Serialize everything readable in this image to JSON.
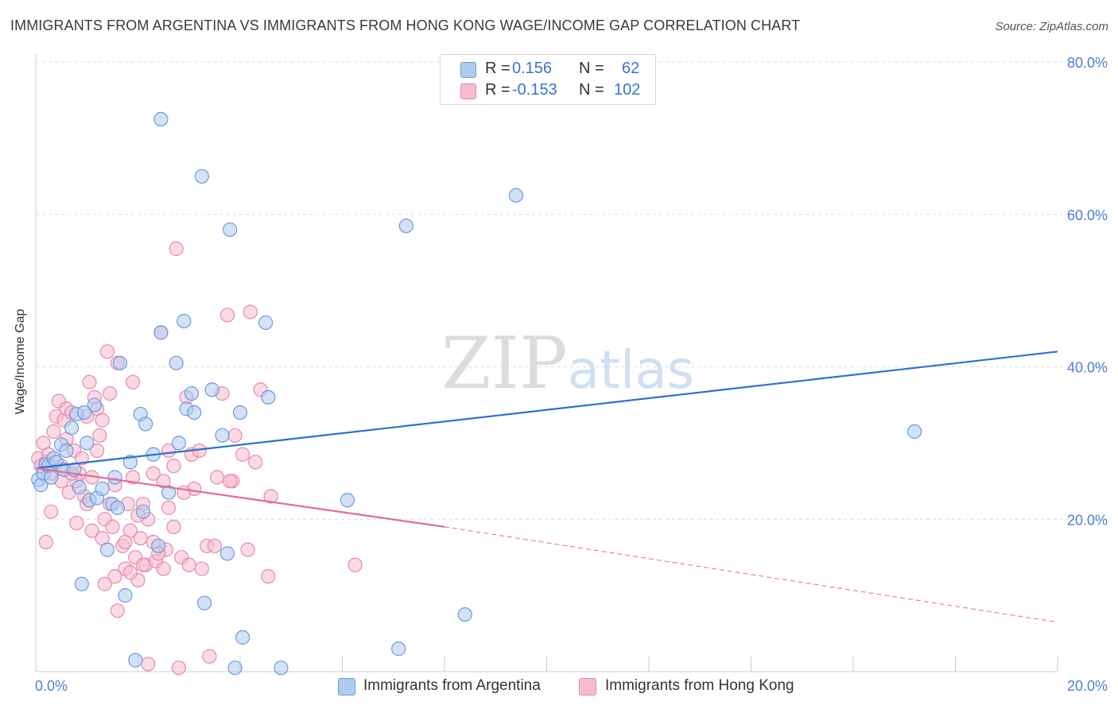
{
  "title": "IMMIGRANTS FROM ARGENTINA VS IMMIGRANTS FROM HONG KONG WAGE/INCOME GAP CORRELATION CHART",
  "source": "Source: ZipAtlas.com",
  "watermark": {
    "zip": "ZIP",
    "atlas": "atlas"
  },
  "stats": {
    "rows": [
      {
        "r_label": "R =",
        "r_value": "0.156",
        "n_label": "N =",
        "n_value": "62"
      },
      {
        "r_label": "R =",
        "r_value": "-0.153",
        "n_label": "N =",
        "n_value": "102"
      }
    ]
  },
  "legend": {
    "items": [
      {
        "label": "Immigrants from Argentina"
      },
      {
        "label": "Immigrants from Hong Kong"
      }
    ]
  },
  "colors": {
    "blue_fill": "#aecbf0",
    "blue_stroke": "#6a9be0",
    "blue_line": "#2f6fd1",
    "pink_fill": "#f7bccf",
    "pink_stroke": "#e68aa8",
    "pink_line": "#e06d96",
    "grid": "#dddddd",
    "tick_text": "#4a7fd4"
  },
  "chart_data": {
    "type": "scatter",
    "title": "IMMIGRANTS FROM ARGENTINA VS IMMIGRANTS FROM HONG KONG WAGE/INCOME GAP CORRELATION CHART",
    "xlabel": "",
    "ylabel": "Wage/Income Gap",
    "xlim": [
      0,
      20
    ],
    "ylim": [
      0,
      80
    ],
    "x_ticks": [
      "0.0%",
      "20.0%"
    ],
    "y_ticks": [
      "20.0%",
      "40.0%",
      "60.0%",
      "80.0%"
    ],
    "grid": true,
    "legend_position": "bottom-center",
    "series": [
      {
        "name": "Immigrants from Argentina",
        "trend": {
          "x_start": 0,
          "y_start": 26.7,
          "x_end": 20,
          "y_end": 42.0
        },
        "points": [
          [
            0.05,
            25.2
          ],
          [
            0.1,
            24.5
          ],
          [
            0.15,
            26.0
          ],
          [
            0.2,
            27.2
          ],
          [
            0.25,
            27.0
          ],
          [
            0.3,
            25.5
          ],
          [
            0.35,
            28.0
          ],
          [
            0.4,
            27.5
          ],
          [
            0.5,
            29.8
          ],
          [
            0.55,
            26.5
          ],
          [
            0.6,
            29.0
          ],
          [
            0.75,
            26.5
          ],
          [
            0.8,
            33.8
          ],
          [
            0.85,
            24.2
          ],
          [
            0.9,
            11.5
          ],
          [
            1.0,
            30.0
          ],
          [
            1.05,
            22.5
          ],
          [
            1.2,
            22.8
          ],
          [
            1.3,
            24.0
          ],
          [
            1.4,
            16.0
          ],
          [
            1.5,
            22.0
          ],
          [
            1.55,
            25.5
          ],
          [
            1.65,
            40.5
          ],
          [
            1.75,
            10.0
          ],
          [
            1.85,
            27.5
          ],
          [
            1.95,
            1.5
          ],
          [
            2.05,
            33.8
          ],
          [
            2.1,
            21.0
          ],
          [
            2.15,
            32.5
          ],
          [
            2.3,
            28.5
          ],
          [
            2.4,
            16.5
          ],
          [
            2.45,
            44.5
          ],
          [
            2.6,
            23.5
          ],
          [
            2.75,
            40.5
          ],
          [
            2.9,
            46.0
          ],
          [
            2.95,
            34.5
          ],
          [
            3.05,
            36.5
          ],
          [
            3.1,
            34.0
          ],
          [
            3.3,
            9.0
          ],
          [
            3.45,
            37.0
          ],
          [
            3.65,
            31.0
          ],
          [
            3.75,
            15.5
          ],
          [
            4.0,
            34.0
          ],
          [
            4.05,
            4.5
          ],
          [
            4.5,
            45.8
          ],
          [
            4.55,
            36.0
          ],
          [
            4.8,
            0.5
          ],
          [
            3.9,
            0.5
          ],
          [
            6.1,
            22.5
          ],
          [
            7.1,
            3.0
          ],
          [
            3.25,
            65.0
          ],
          [
            3.8,
            58.0
          ],
          [
            7.25,
            58.5
          ],
          [
            9.4,
            62.5
          ],
          [
            2.45,
            72.5
          ],
          [
            8.4,
            7.5
          ],
          [
            17.2,
            31.5
          ],
          [
            0.7,
            32.0
          ],
          [
            1.6,
            21.5
          ],
          [
            2.8,
            30.0
          ],
          [
            1.15,
            35.0
          ],
          [
            0.95,
            34.0
          ]
        ]
      },
      {
        "name": "Immigrants from Hong Kong",
        "trend": {
          "x_start": 0,
          "y_start": 26.7,
          "x_end": 8.0,
          "y_end": 19.0,
          "dash_to_x": 20,
          "dash_to_y": 6.5
        },
        "points": [
          [
            0.05,
            28.0
          ],
          [
            0.1,
            27.0
          ],
          [
            0.15,
            30.0
          ],
          [
            0.2,
            27.5
          ],
          [
            0.25,
            28.5
          ],
          [
            0.3,
            26.0
          ],
          [
            0.35,
            31.5
          ],
          [
            0.4,
            33.5
          ],
          [
            0.45,
            35.5
          ],
          [
            0.5,
            27.0
          ],
          [
            0.55,
            33.0
          ],
          [
            0.6,
            34.5
          ],
          [
            0.7,
            34.0
          ],
          [
            0.75,
            29.0
          ],
          [
            0.8,
            25.0
          ],
          [
            0.85,
            26.0
          ],
          [
            0.9,
            28.0
          ],
          [
            0.95,
            23.0
          ],
          [
            1.0,
            22.0
          ],
          [
            1.05,
            38.0
          ],
          [
            1.1,
            18.5
          ],
          [
            1.15,
            36.0
          ],
          [
            1.2,
            34.5
          ],
          [
            1.25,
            31.0
          ],
          [
            1.3,
            17.5
          ],
          [
            1.35,
            20.0
          ],
          [
            1.4,
            42.0
          ],
          [
            1.45,
            22.0
          ],
          [
            1.5,
            19.0
          ],
          [
            1.55,
            24.5
          ],
          [
            1.6,
            40.5
          ],
          [
            1.7,
            16.5
          ],
          [
            1.75,
            13.5
          ],
          [
            1.8,
            22.0
          ],
          [
            1.85,
            18.5
          ],
          [
            1.9,
            38.0
          ],
          [
            1.95,
            15.0
          ],
          [
            2.0,
            12.0
          ],
          [
            2.05,
            17.5
          ],
          [
            2.1,
            22.0
          ],
          [
            2.15,
            14.0
          ],
          [
            2.2,
            20.0
          ],
          [
            2.3,
            17.0
          ],
          [
            2.35,
            14.5
          ],
          [
            2.45,
            44.5
          ],
          [
            2.5,
            25.0
          ],
          [
            2.55,
            16.0
          ],
          [
            2.6,
            21.5
          ],
          [
            2.7,
            19.0
          ],
          [
            2.75,
            55.5
          ],
          [
            2.85,
            15.0
          ],
          [
            2.95,
            36.0
          ],
          [
            3.05,
            28.5
          ],
          [
            3.1,
            24.0
          ],
          [
            3.25,
            13.5
          ],
          [
            3.35,
            16.5
          ],
          [
            3.5,
            16.5
          ],
          [
            3.65,
            36.5
          ],
          [
            3.75,
            46.8
          ],
          [
            3.85,
            25.0
          ],
          [
            4.2,
            47.2
          ],
          [
            4.4,
            37.0
          ],
          [
            0.2,
            17.0
          ],
          [
            0.5,
            25.0
          ],
          [
            0.6,
            30.5
          ],
          [
            0.65,
            23.5
          ],
          [
            0.7,
            26.0
          ],
          [
            1.0,
            33.5
          ],
          [
            1.1,
            25.5
          ],
          [
            1.2,
            29.0
          ],
          [
            1.3,
            33.0
          ],
          [
            1.35,
            11.5
          ],
          [
            1.45,
            36.5
          ],
          [
            1.6,
            8.0
          ],
          [
            1.75,
            17.0
          ],
          [
            1.85,
            13.0
          ],
          [
            2.0,
            20.5
          ],
          [
            2.1,
            14.0
          ],
          [
            2.2,
            1.0
          ],
          [
            2.3,
            26.0
          ],
          [
            2.4,
            15.5
          ],
          [
            2.5,
            13.5
          ],
          [
            2.6,
            29.0
          ],
          [
            2.7,
            27.0
          ],
          [
            2.8,
            0.5
          ],
          [
            3.0,
            14.0
          ],
          [
            3.2,
            29.0
          ],
          [
            3.4,
            2.0
          ],
          [
            3.55,
            25.5
          ],
          [
            3.8,
            25.0
          ],
          [
            3.9,
            31.0
          ],
          [
            4.05,
            28.5
          ],
          [
            4.15,
            16.0
          ],
          [
            4.3,
            27.5
          ],
          [
            4.55,
            12.5
          ],
          [
            4.6,
            23.0
          ],
          [
            6.25,
            14.0
          ],
          [
            0.3,
            21.0
          ],
          [
            0.8,
            19.5
          ],
          [
            1.55,
            12.5
          ],
          [
            1.9,
            25.5
          ],
          [
            2.9,
            23.5
          ]
        ]
      }
    ]
  }
}
